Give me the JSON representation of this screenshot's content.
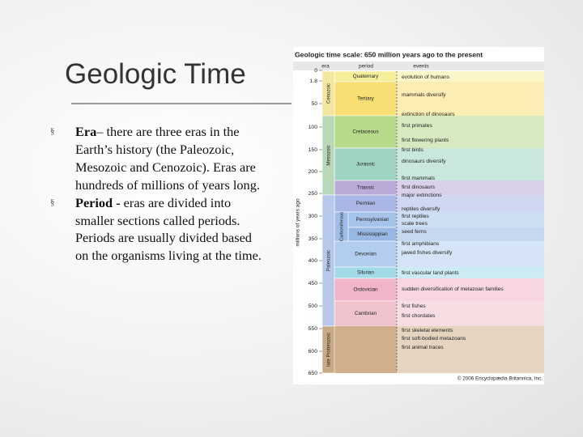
{
  "slide": {
    "title": "Geologic Time",
    "bullets": [
      {
        "term": "Era",
        "text": "– there are three eras in the Earth’s history (the Paleozoic, Mesozoic and Cenozoic).  Eras are hundreds of millions of years long."
      },
      {
        "term": "Period -",
        "text": " eras are divided into smaller sections called periods.  Periods are usually divided based on the organisms living at the time."
      }
    ]
  },
  "figure": {
    "title": "Geologic time scale: 650 million years ago to the present",
    "headers": [
      "era",
      "period",
      "events"
    ],
    "axis_label": "millions of years ago",
    "ticks": [
      0,
      1.8,
      50,
      100,
      150,
      200,
      250,
      300,
      350,
      400,
      450,
      500,
      550,
      600,
      650
    ],
    "eras": [
      "Cenozoic",
      "Mesozoic",
      "Paleozoic",
      "late Proterozoic"
    ],
    "group": "Carboniferous",
    "periods": [
      "Quaternary",
      "Tertiary",
      "Cretaceous",
      "Jurassic",
      "Triassic",
      "Permian",
      "Pennsylvanian",
      "Mississippian",
      "Devonian",
      "Silurian",
      "Ordovician",
      "Cambrian"
    ],
    "events": [
      "evolution of humans",
      "mammals diversify",
      "extinction of dinosaurs",
      "first primates",
      "first flowering plants",
      "first birds",
      "dinosaurs diversify",
      "first mammals",
      "first dinosaurs",
      "major extinctions",
      "reptiles diversify",
      "first reptiles",
      "scale trees",
      "seed ferns",
      "first amphibians",
      "jawed fishes diversify",
      "first vascular land plants",
      "sudden diversification of metazoan families",
      "first fishes",
      "first chordates",
      "first skeletal elements",
      "first soft-bodied metazoans",
      "first animal traces"
    ],
    "credit": "© 2006 Encyclopædia Britannica, Inc."
  }
}
